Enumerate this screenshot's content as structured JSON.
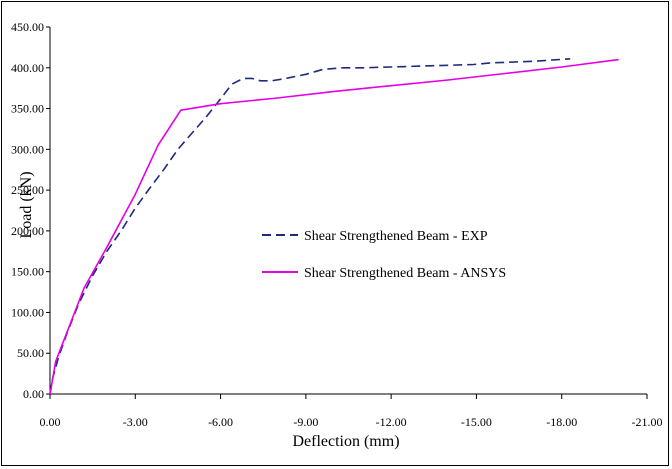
{
  "chart_data": {
    "type": "line",
    "title": "",
    "xlabel": "Deflection (mm)",
    "ylabel": "Load (kN)",
    "xlim": [
      0,
      -21
    ],
    "ylim": [
      0,
      450
    ],
    "x_ticks": [
      "0.00",
      "-3.00",
      "-6.00",
      "-9.00",
      "-12.00",
      "-15.00",
      "-18.00",
      "-21.00"
    ],
    "y_ticks": [
      "0.00",
      "50.00",
      "100.00",
      "150.00",
      "200.00",
      "250.00",
      "300.00",
      "350.00",
      "400.00",
      "450.00"
    ],
    "grid": false,
    "legend_position": "center-right",
    "series": [
      {
        "name": "Shear Strengthened Beam - EXP",
        "color": "#1f2a7a",
        "style": "dashed",
        "points": [
          [
            0,
            0
          ],
          [
            -0.1,
            20
          ],
          [
            -0.3,
            45
          ],
          [
            -0.6,
            75
          ],
          [
            -1.0,
            110
          ],
          [
            -1.5,
            145
          ],
          [
            -2.0,
            175
          ],
          [
            -2.5,
            200
          ],
          [
            -3.0,
            228
          ],
          [
            -3.5,
            252
          ],
          [
            -4.0,
            275
          ],
          [
            -4.5,
            300
          ],
          [
            -5.0,
            320
          ],
          [
            -5.5,
            340
          ],
          [
            -6.0,
            362
          ],
          [
            -6.4,
            380
          ],
          [
            -6.8,
            387
          ],
          [
            -7.1,
            387
          ],
          [
            -7.4,
            384
          ],
          [
            -7.8,
            384
          ],
          [
            -8.3,
            387
          ],
          [
            -9.0,
            392
          ],
          [
            -9.6,
            398
          ],
          [
            -10.3,
            400
          ],
          [
            -11.0,
            400
          ],
          [
            -12.0,
            401
          ],
          [
            -13.0,
            402
          ],
          [
            -14.0,
            403
          ],
          [
            -14.9,
            404
          ],
          [
            -15.5,
            406
          ],
          [
            -17.0,
            408
          ],
          [
            -18.3,
            411
          ]
        ]
      },
      {
        "name": "Shear Strengthened Beam - ANSYS",
        "color": "#e400e4",
        "style": "solid",
        "points": [
          [
            0,
            0
          ],
          [
            -0.2,
            40
          ],
          [
            -0.7,
            85
          ],
          [
            -1.2,
            130
          ],
          [
            -2.0,
            180
          ],
          [
            -3.0,
            245
          ],
          [
            -3.8,
            305
          ],
          [
            -4.6,
            348
          ],
          [
            -6.0,
            356
          ],
          [
            -8.0,
            363
          ],
          [
            -10.0,
            371
          ],
          [
            -12.0,
            378
          ],
          [
            -14.0,
            385
          ],
          [
            -16.0,
            393
          ],
          [
            -18.0,
            401
          ],
          [
            -20.0,
            410
          ]
        ]
      }
    ]
  }
}
